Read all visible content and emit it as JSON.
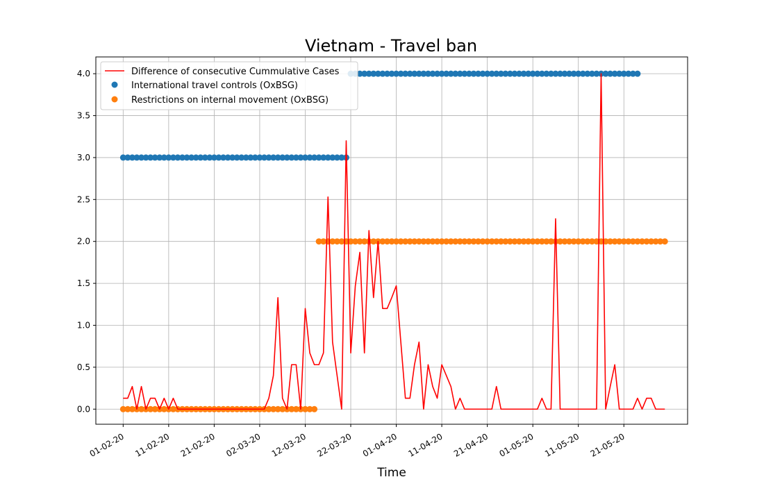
{
  "chart_data": {
    "type": "line",
    "title": "Vietnam - Travel ban",
    "xlabel": "Time",
    "ylabel": "",
    "x_start_date": "2020-02-01",
    "xlim_days": [
      -6,
      124
    ],
    "ylim": [
      -0.18,
      4.2
    ],
    "yticks": [
      "0.0",
      "0.5",
      "1.0",
      "1.5",
      "2.0",
      "2.5",
      "3.0",
      "3.5",
      "4.0"
    ],
    "xticks": [
      {
        "day": 0,
        "label": "01-02-20"
      },
      {
        "day": 10,
        "label": "11-02-20"
      },
      {
        "day": 20,
        "label": "21-02-20"
      },
      {
        "day": 30,
        "label": "02-03-20"
      },
      {
        "day": 40,
        "label": "12-03-20"
      },
      {
        "day": 50,
        "label": "22-03-20"
      },
      {
        "day": 60,
        "label": "01-04-20"
      },
      {
        "day": 70,
        "label": "11-04-20"
      },
      {
        "day": 80,
        "label": "21-04-20"
      },
      {
        "day": 90,
        "label": "01-05-20"
      },
      {
        "day": 100,
        "label": "11-05-20"
      },
      {
        "day": 110,
        "label": "21-05-20"
      }
    ],
    "grid": true,
    "legend_position": "top-left",
    "legend": [
      "Difference of consecutive Cummulative Cases",
      "International travel controls (OxBSG)",
      "Restrictions on internal movement (OxBSG)"
    ],
    "series": [
      {
        "name": "Difference of consecutive Cummulative Cases",
        "kind": "line",
        "color": "#ff0000",
        "points": [
          [
            0,
            0.13
          ],
          [
            1,
            0.13
          ],
          [
            2,
            0.27
          ],
          [
            3,
            0
          ],
          [
            4,
            0.27
          ],
          [
            5,
            0
          ],
          [
            6,
            0.13
          ],
          [
            7,
            0.13
          ],
          [
            8,
            0
          ],
          [
            9,
            0.13
          ],
          [
            10,
            0
          ],
          [
            11,
            0.13
          ],
          [
            12,
            0
          ],
          [
            13,
            0
          ],
          [
            14,
            0
          ],
          [
            15,
            0
          ],
          [
            16,
            0
          ],
          [
            17,
            0
          ],
          [
            18,
            0
          ],
          [
            19,
            0
          ],
          [
            20,
            0
          ],
          [
            21,
            0
          ],
          [
            22,
            0
          ],
          [
            23,
            0
          ],
          [
            24,
            0
          ],
          [
            25,
            0
          ],
          [
            26,
            0
          ],
          [
            27,
            0
          ],
          [
            28,
            0
          ],
          [
            29,
            0
          ],
          [
            30,
            0
          ],
          [
            31,
            0
          ],
          [
            32,
            0.13
          ],
          [
            33,
            0.4
          ],
          [
            34,
            1.33
          ],
          [
            35,
            0.13
          ],
          [
            36,
            0
          ],
          [
            37,
            0.53
          ],
          [
            38,
            0.53
          ],
          [
            39,
            0
          ],
          [
            40,
            1.2
          ],
          [
            41,
            0.67
          ],
          [
            42,
            0.53
          ],
          [
            43,
            0.53
          ],
          [
            44,
            0.67
          ],
          [
            45,
            2.53
          ],
          [
            46,
            0.8
          ],
          [
            47,
            0.4
          ],
          [
            48,
            0
          ],
          [
            49,
            3.2
          ],
          [
            50,
            0.67
          ],
          [
            51,
            1.47
          ],
          [
            52,
            1.87
          ],
          [
            53,
            0.67
          ],
          [
            54,
            2.13
          ],
          [
            55,
            1.33
          ],
          [
            56,
            2.0
          ],
          [
            57,
            1.2
          ],
          [
            58,
            1.2
          ],
          [
            59,
            1.33
          ],
          [
            60,
            1.47
          ],
          [
            61,
            0.8
          ],
          [
            62,
            0.13
          ],
          [
            63,
            0.13
          ],
          [
            64,
            0.53
          ],
          [
            65,
            0.8
          ],
          [
            66,
            0
          ],
          [
            67,
            0.53
          ],
          [
            68,
            0.27
          ],
          [
            69,
            0.13
          ],
          [
            70,
            0.53
          ],
          [
            71,
            0.4
          ],
          [
            72,
            0.27
          ],
          [
            73,
            0
          ],
          [
            74,
            0.13
          ],
          [
            75,
            0
          ],
          [
            76,
            0
          ],
          [
            77,
            0
          ],
          [
            78,
            0
          ],
          [
            79,
            0
          ],
          [
            80,
            0
          ],
          [
            81,
            0
          ],
          [
            82,
            0.27
          ],
          [
            83,
            0
          ],
          [
            84,
            0
          ],
          [
            85,
            0
          ],
          [
            86,
            0
          ],
          [
            87,
            0
          ],
          [
            88,
            0
          ],
          [
            89,
            0
          ],
          [
            90,
            0
          ],
          [
            91,
            0
          ],
          [
            92,
            0.13
          ],
          [
            93,
            0
          ],
          [
            94,
            0
          ],
          [
            95,
            2.27
          ],
          [
            96,
            0
          ],
          [
            97,
            0
          ],
          [
            98,
            0
          ],
          [
            99,
            0
          ],
          [
            100,
            0
          ],
          [
            101,
            0
          ],
          [
            102,
            0
          ],
          [
            103,
            0
          ],
          [
            104,
            0
          ],
          [
            105,
            4.0
          ],
          [
            106,
            0
          ],
          [
            107,
            0.27
          ],
          [
            108,
            0.53
          ],
          [
            109,
            0
          ],
          [
            110,
            0
          ],
          [
            111,
            0
          ],
          [
            112,
            0
          ],
          [
            113,
            0.13
          ],
          [
            114,
            0
          ],
          [
            115,
            0.13
          ],
          [
            116,
            0.13
          ],
          [
            117,
            0
          ],
          [
            118,
            0
          ],
          [
            119,
            0
          ]
        ]
      },
      {
        "name": "International travel controls (OxBSG)",
        "kind": "scatter",
        "color": "#1f77b4",
        "segments": [
          {
            "from_day": 0,
            "to_day": 49,
            "value": 3.0
          },
          {
            "from_day": 50,
            "to_day": 113,
            "value": 4.0
          }
        ]
      },
      {
        "name": "Restrictions on internal movement (OxBSG)",
        "kind": "scatter",
        "color": "#ff7f0e",
        "segments": [
          {
            "from_day": 0,
            "to_day": 42,
            "value": 0.0
          },
          {
            "from_day": 43,
            "to_day": 119,
            "value": 2.0
          }
        ]
      }
    ]
  }
}
